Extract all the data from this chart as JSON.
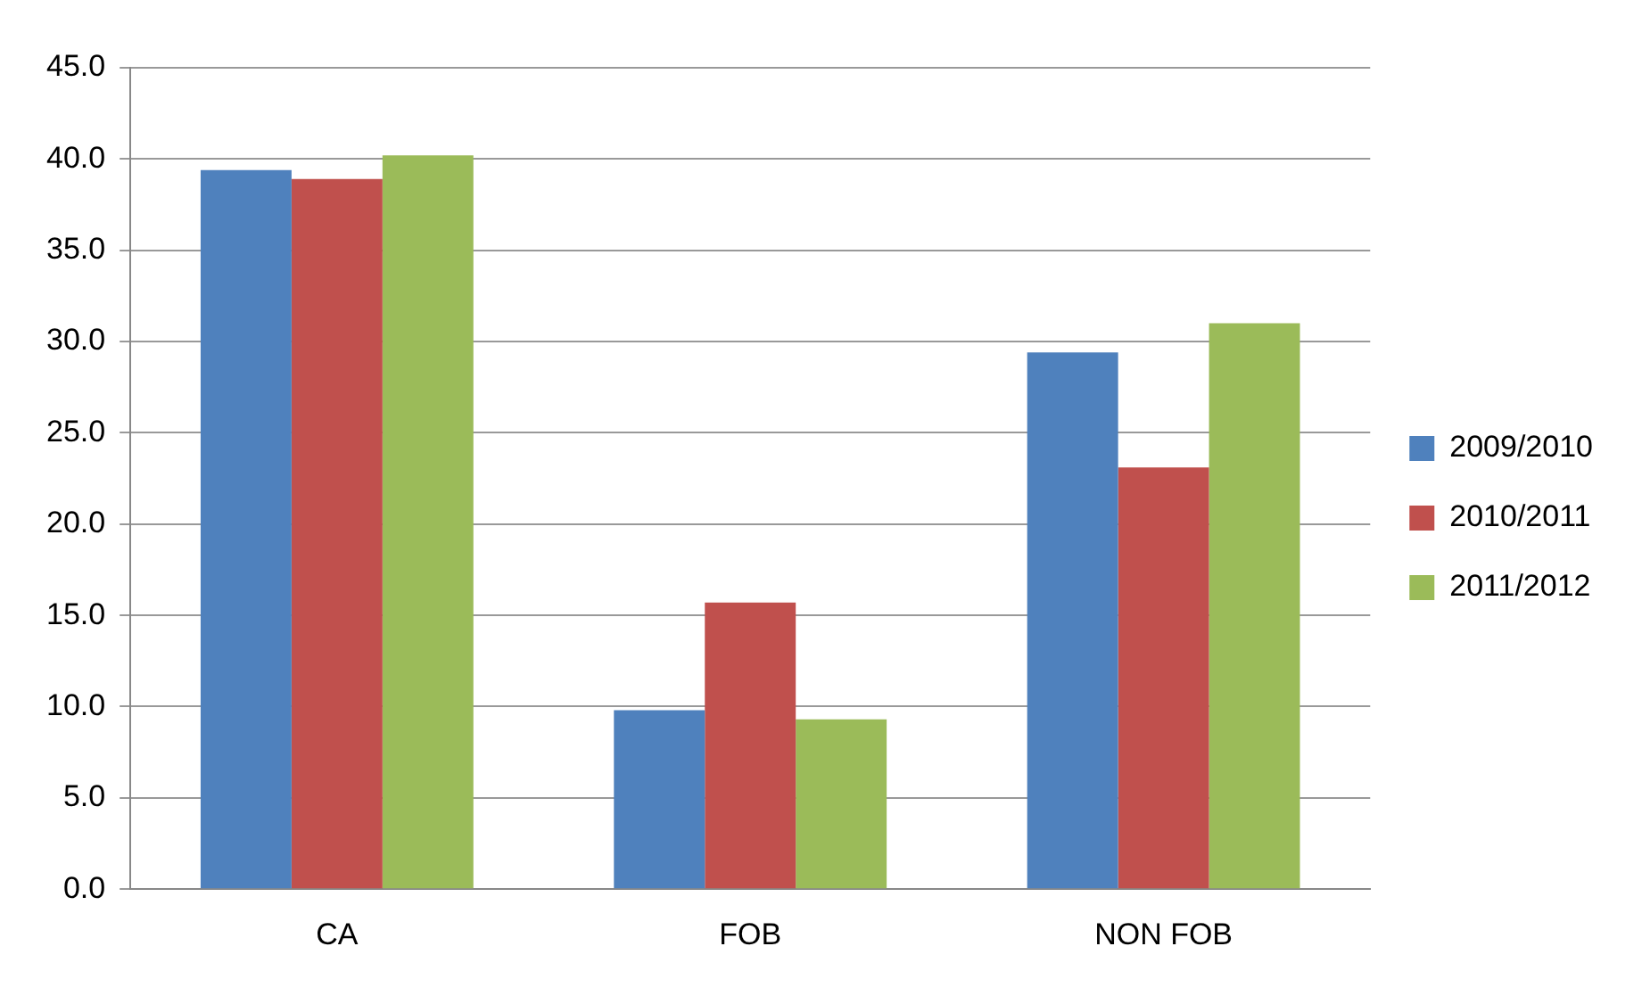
{
  "chart_data": {
    "type": "bar",
    "categories": [
      "CA",
      "FOB",
      "NON FOB"
    ],
    "series": [
      {
        "name": "2009/2010",
        "color": "#4f81bd",
        "values": [
          39.4,
          9.8,
          29.4
        ]
      },
      {
        "name": "2010/2011",
        "color": "#c0504d",
        "values": [
          38.9,
          15.7,
          23.1
        ]
      },
      {
        "name": "2011/2012",
        "color": "#9bbb59",
        "values": [
          40.2,
          9.3,
          31.0
        ]
      }
    ],
    "ylim": [
      0,
      45
    ],
    "yticks": [
      {
        "value": 0,
        "label": "0.0"
      },
      {
        "value": 5,
        "label": "5.0"
      },
      {
        "value": 10,
        "label": "10.0"
      },
      {
        "value": 15,
        "label": "15.0"
      },
      {
        "value": 20,
        "label": "20.0"
      },
      {
        "value": 25,
        "label": "25.0"
      },
      {
        "value": 30,
        "label": "30.0"
      },
      {
        "value": 35,
        "label": "35.0"
      },
      {
        "value": 40,
        "label": "40.0"
      },
      {
        "value": 45,
        "label": "45.0"
      }
    ],
    "grid": "y",
    "legend": "right"
  }
}
